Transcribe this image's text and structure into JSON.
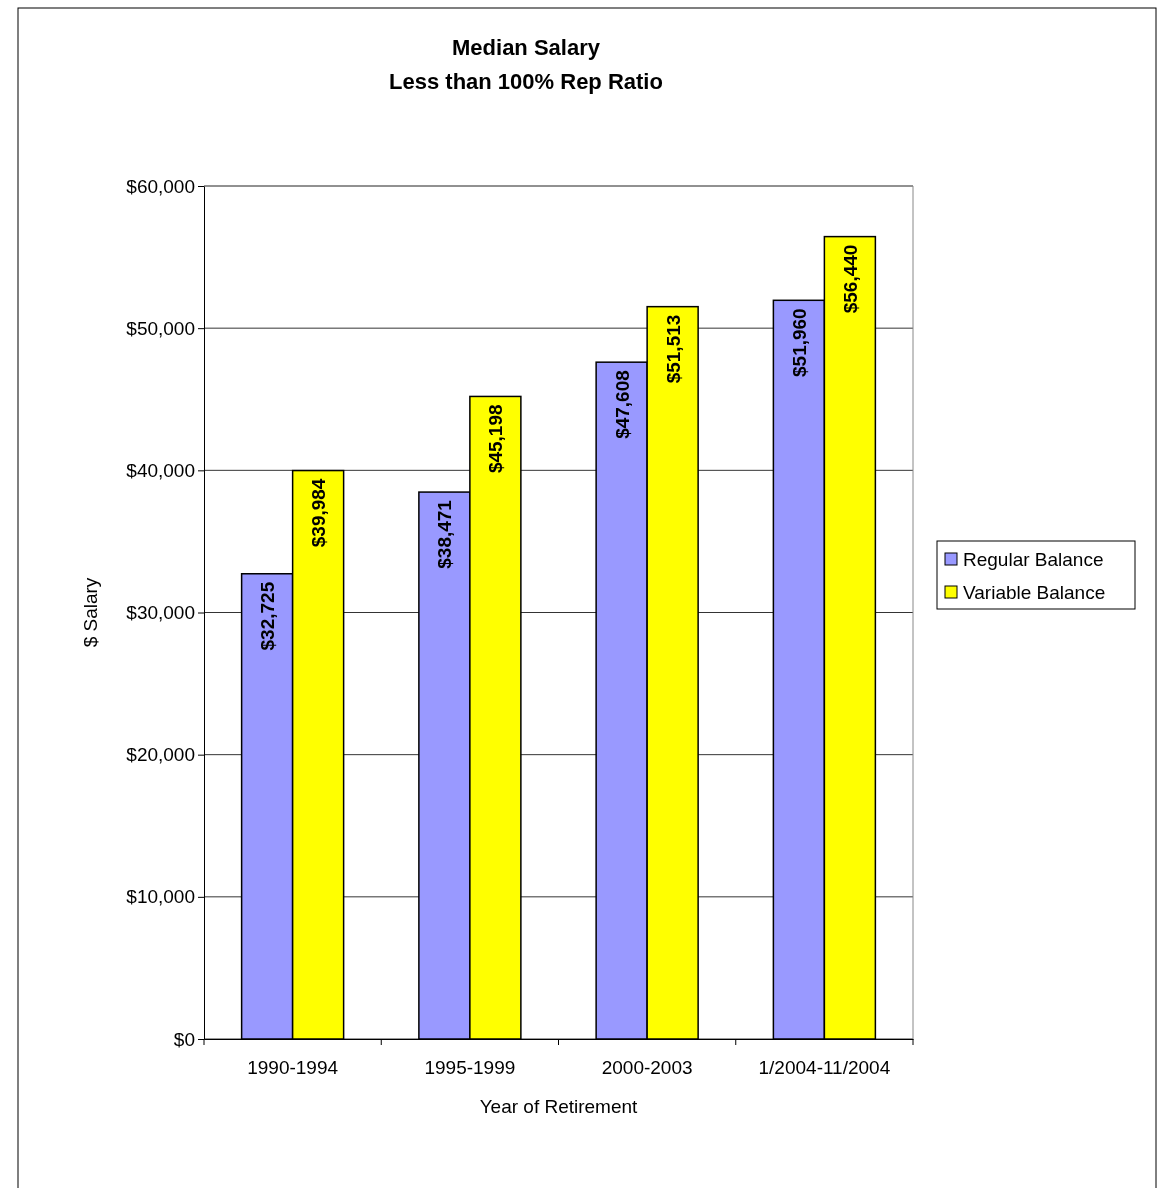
{
  "chart_data": {
    "type": "bar",
    "title": "Median Salary",
    "subtitle": "Less than 100% Rep Ratio",
    "xlabel": "Year of Retirement",
    "ylabel": "$ Salary",
    "categories": [
      "1990-1994",
      "1995-1999",
      "2000-2003",
      "1/2004-11/2004"
    ],
    "series": [
      {
        "name": "Regular Balance",
        "color": "#9999ff",
        "values": [
          32725,
          38471,
          47608,
          51960
        ],
        "value_labels": [
          "$32,725",
          "$38,471",
          "$47,608",
          "$51,960"
        ]
      },
      {
        "name": "Variable Balance",
        "color": "#ffff00",
        "values": [
          39984,
          45198,
          51513,
          56440
        ],
        "value_labels": [
          "$39,984",
          "$45,198",
          "$51,513",
          "$56,440"
        ]
      }
    ],
    "ylim": [
      0,
      60000
    ],
    "yticks": [
      {
        "value": 0,
        "label": "$0"
      },
      {
        "value": 10000,
        "label": "$10,000"
      },
      {
        "value": 20000,
        "label": "$20,000"
      },
      {
        "value": 30000,
        "label": "$30,000"
      },
      {
        "value": 40000,
        "label": "$40,000"
      },
      {
        "value": 50000,
        "label": "$50,000"
      },
      {
        "value": 60000,
        "label": "$60,000"
      }
    ],
    "grid": "y",
    "legend": "right"
  }
}
